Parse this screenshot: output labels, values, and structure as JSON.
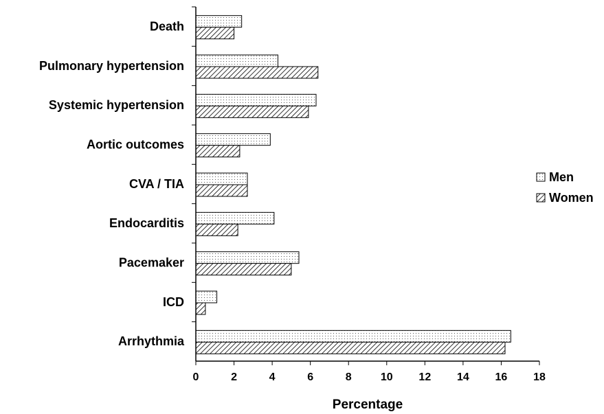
{
  "chart_data": {
    "type": "bar",
    "orientation": "horizontal",
    "categories": [
      "Death",
      "Pulmonary hypertension",
      "Systemic hypertension",
      "Aortic outcomes",
      "CVA / TIA",
      "Endocarditis",
      "Pacemaker",
      "ICD",
      "Arrhythmia"
    ],
    "series": [
      {
        "name": "Men",
        "color": "#000000",
        "pattern": "dots",
        "values": [
          2.4,
          4.3,
          6.3,
          3.9,
          2.7,
          4.1,
          5.4,
          1.1,
          16.5
        ]
      },
      {
        "name": "Women",
        "color": "#000000",
        "pattern": "hatch",
        "values": [
          2.0,
          6.4,
          5.9,
          2.3,
          2.7,
          2.2,
          5.0,
          0.5,
          16.2
        ]
      }
    ],
    "xlabel": "Percentage",
    "xlim": [
      0,
      18
    ],
    "xticks": [
      0,
      2,
      4,
      6,
      8,
      10,
      12,
      14,
      16,
      18
    ],
    "legend": "right"
  }
}
